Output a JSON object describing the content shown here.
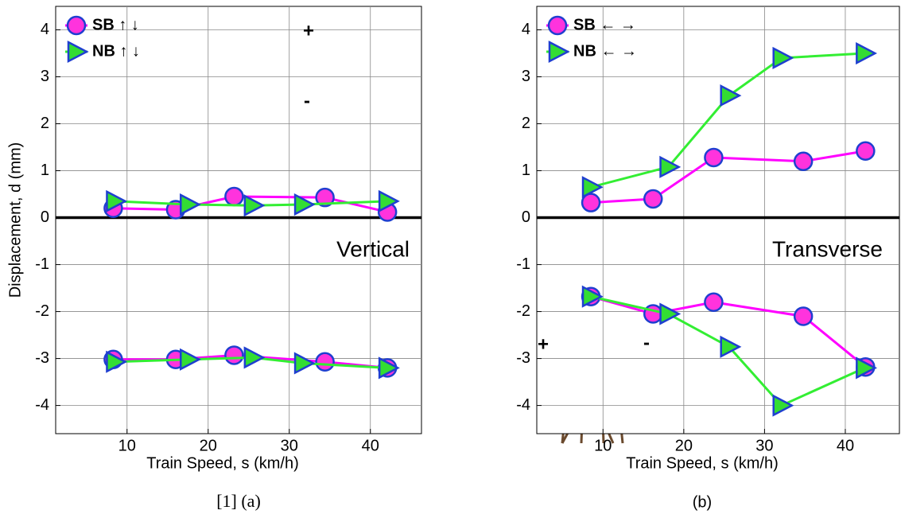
{
  "chart_data": [
    {
      "type": "line",
      "ylabel": "Displacement, d (mm)",
      "xlabel": "Train Speed, s (km/h)",
      "caption": "[1]  (a)",
      "annotations": [
        "Vertical",
        "+",
        "-"
      ],
      "xlim": [
        1.2,
        46.3
      ],
      "xticks": [
        10,
        20,
        30,
        40
      ],
      "ylim": [
        -4.6,
        4.5
      ],
      "yticks": [
        -4,
        -3,
        -2,
        -1,
        0,
        1,
        2,
        3,
        4
      ],
      "grid": true,
      "zero_line": true,
      "legend": "upper left",
      "series": [
        {
          "name": "SB ↑ ↓",
          "color": "#ff00ff",
          "marker": "circle",
          "marker_color": "#ff33dd",
          "edge_color": "#1f3fd0",
          "x": [
            8.3,
            16.0,
            23.2,
            34.4,
            42.1,
            null,
            8.3,
            16.0,
            23.2,
            34.4,
            42.1
          ],
          "values": [
            0.2,
            0.17,
            0.45,
            0.43,
            0.12,
            null,
            -3.02,
            -3.02,
            -2.93,
            -3.07,
            -3.2
          ]
        },
        {
          "name": "NB ↑ ↓",
          "color": "#33ee33",
          "marker": "triangle",
          "marker_color": "#33dd33",
          "edge_color": "#1f3fd0",
          "x": [
            8.5,
            17.6,
            25.5,
            31.7,
            42.1,
            null,
            8.5,
            17.6,
            25.5,
            31.7,
            42.1
          ],
          "values": [
            0.35,
            0.28,
            0.26,
            0.28,
            0.35,
            null,
            -3.07,
            -3.02,
            -2.98,
            -3.1,
            -3.2
          ]
        }
      ]
    },
    {
      "type": "line",
      "xlabel": "Train Speed, s (km/h)",
      "caption": "(b)",
      "annotations": [
        "Transverse",
        "+",
        "-"
      ],
      "xlim": [
        1.8,
        46.7
      ],
      "xticks": [
        10,
        20,
        30,
        40
      ],
      "ylim": [
        -4.6,
        4.5
      ],
      "yticks": [
        -4,
        -3,
        -2,
        -1,
        0,
        1,
        2,
        3,
        4
      ],
      "grid": true,
      "zero_line": true,
      "legend": "upper left",
      "series": [
        {
          "name": "SB ← →",
          "color": "#ff00ff",
          "marker": "circle",
          "marker_color": "#ff33dd",
          "edge_color": "#1f3fd0",
          "x": [
            8.5,
            16.2,
            23.7,
            34.8,
            42.5,
            null,
            8.5,
            16.2,
            23.7,
            34.8,
            42.5
          ],
          "values": [
            0.32,
            0.4,
            1.28,
            1.2,
            1.42,
            null,
            -1.68,
            -2.05,
            -1.8,
            -2.1,
            -3.18
          ]
        },
        {
          "name": "NB ← →",
          "color": "#33ee33",
          "marker": "triangle",
          "marker_color": "#33dd33",
          "edge_color": "#1f3fd0",
          "x": [
            8.5,
            18.1,
            25.6,
            32.1,
            42.4,
            null,
            8.5,
            18.1,
            25.6,
            32.1,
            42.4
          ],
          "values": [
            0.65,
            1.08,
            2.6,
            3.4,
            3.5,
            null,
            -1.68,
            -2.05,
            -2.75,
            -4.0,
            -3.2
          ]
        }
      ]
    }
  ]
}
